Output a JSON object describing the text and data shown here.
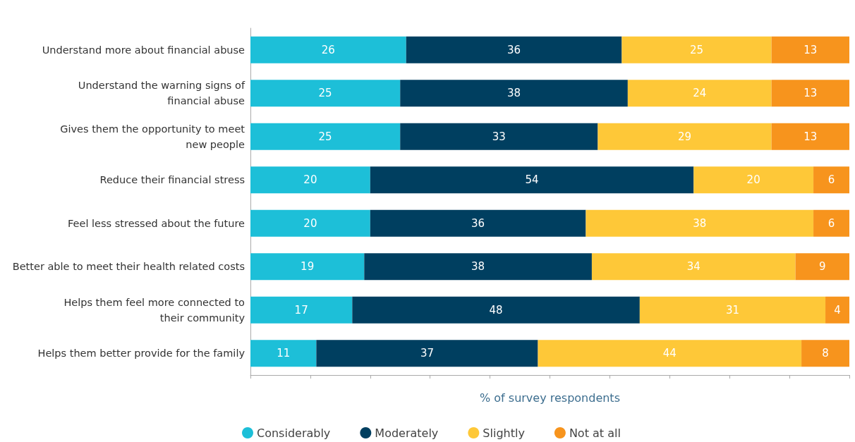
{
  "chart_data": {
    "type": "bar",
    "orientation": "horizontal",
    "stacked": true,
    "xlabel": "% of survey respondents",
    "categories": [
      "Understand more about financial abuse",
      "Understand the warning signs of\nfinancial abuse",
      "Gives them the opportunity to meet\nnew people",
      "Reduce their financial stress",
      "Feel less stressed about the future",
      "Better able to meet their health related costs",
      "Helps them feel more connected to\ntheir community",
      "Helps them better provide for the family"
    ],
    "series": [
      {
        "name": "Considerably",
        "color": "#1dbfd8",
        "values": [
          26,
          25,
          25,
          20,
          20,
          19,
          17,
          11
        ]
      },
      {
        "name": "Moderately",
        "color": "#003f60",
        "values": [
          36,
          38,
          33,
          54,
          36,
          38,
          48,
          37
        ]
      },
      {
        "name": "Slightly",
        "color": "#fec838",
        "values": [
          25,
          24,
          29,
          20,
          38,
          34,
          31,
          44
        ]
      },
      {
        "name": "Not at all",
        "color": "#f7941d",
        "values": [
          13,
          13,
          13,
          6,
          6,
          9,
          4,
          8
        ]
      }
    ],
    "xlim": [
      0,
      100
    ],
    "xticks": [
      {
        "value": 0,
        "label": null
      },
      {
        "value": 10,
        "label": null
      },
      {
        "value": 20,
        "label": null
      },
      {
        "value": 30,
        "label": null
      },
      {
        "value": 40,
        "label": null
      },
      {
        "value": 50,
        "label": null
      },
      {
        "value": 60,
        "label": null
      },
      {
        "value": 70,
        "label": null
      },
      {
        "value": 80,
        "label": null
      },
      {
        "value": 90,
        "label": null
      },
      {
        "value": 100,
        "label": null
      }
    ],
    "tick_labels": "y",
    "data_labels": true,
    "grid": false,
    "legend": "bottom"
  }
}
